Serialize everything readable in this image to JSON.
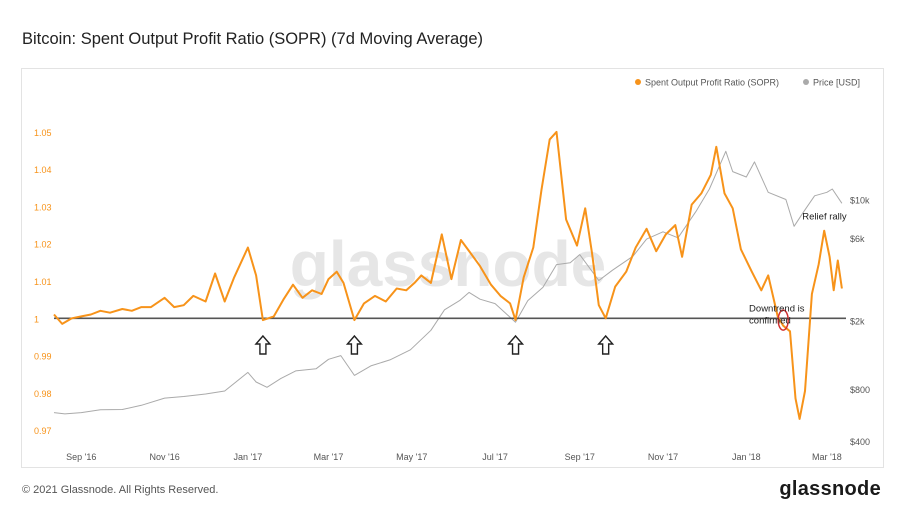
{
  "title": "Bitcoin: Spent Output Profit Ratio (SOPR) (7d Moving Average)",
  "footer": {
    "copyright": "© 2021 Glassnode. All Rights Reserved.",
    "logo": "glassnode"
  },
  "watermark": "glassnode",
  "colors": {
    "sopr": "#f7931a",
    "price": "#aaaaaa",
    "baseline": "#555555",
    "annotation": "#222222",
    "marker": "#d32f2f"
  },
  "chart_data": {
    "type": "line",
    "title": "Bitcoin: Spent Output Profit Ratio (SOPR) (7d Moving Average)",
    "legend_position": "top-right",
    "grid": false,
    "x_range": [
      "2016-08-12",
      "2018-03-15"
    ],
    "x_ticks": [
      {
        "date": "2016-09-01",
        "label": "Sep '16"
      },
      {
        "date": "2016-11-01",
        "label": "Nov '16"
      },
      {
        "date": "2017-01-01",
        "label": "Jan '17"
      },
      {
        "date": "2017-03-01",
        "label": "Mar '17"
      },
      {
        "date": "2017-05-01",
        "label": "May '17"
      },
      {
        "date": "2017-07-01",
        "label": "Jul '17"
      },
      {
        "date": "2017-09-01",
        "label": "Sep '17"
      },
      {
        "date": "2017-11-01",
        "label": "Nov '17"
      },
      {
        "date": "2018-01-01",
        "label": "Jan '18"
      },
      {
        "date": "2018-03-01",
        "label": "Mar '18"
      }
    ],
    "y_left": {
      "range": [
        0.966,
        1.054
      ],
      "ticks": [
        "0.97",
        "0.98",
        "0.99",
        "1",
        "1.01",
        "1.02",
        "1.03",
        "1.04",
        "1.05"
      ]
    },
    "y_right": {
      "scale": "log",
      "range": [
        380,
        30000
      ],
      "ticks": [
        {
          "value": 400,
          "label": "$400"
        },
        {
          "value": 800,
          "label": "$800"
        },
        {
          "value": 2000,
          "label": "$2k"
        },
        {
          "value": 6000,
          "label": "$6k"
        },
        {
          "value": 10000,
          "label": "$10k"
        }
      ]
    },
    "baseline": 1,
    "series": [
      {
        "name": "Spent Output Profit Ratio (SOPR)",
        "axis": "left",
        "points": [
          [
            "2016-08-12",
            1.001
          ],
          [
            "2016-08-18",
            0.9985
          ],
          [
            "2016-08-25",
            1.0
          ],
          [
            "2016-09-01",
            1.0005
          ],
          [
            "2016-09-08",
            1.001
          ],
          [
            "2016-09-15",
            1.002
          ],
          [
            "2016-09-22",
            1.0015
          ],
          [
            "2016-10-01",
            1.0025
          ],
          [
            "2016-10-08",
            1.002
          ],
          [
            "2016-10-15",
            1.003
          ],
          [
            "2016-10-22",
            1.003
          ],
          [
            "2016-11-01",
            1.0055
          ],
          [
            "2016-11-08",
            1.003
          ],
          [
            "2016-11-15",
            1.0035
          ],
          [
            "2016-11-22",
            1.006
          ],
          [
            "2016-12-01",
            1.0045
          ],
          [
            "2016-12-08",
            1.012
          ],
          [
            "2016-12-15",
            1.0045
          ],
          [
            "2016-12-22",
            1.011
          ],
          [
            "2017-01-01",
            1.019
          ],
          [
            "2017-01-07",
            1.0115
          ],
          [
            "2017-01-12",
            0.9995
          ],
          [
            "2017-01-20",
            1.0005
          ],
          [
            "2017-01-27",
            1.005
          ],
          [
            "2017-02-03",
            1.009
          ],
          [
            "2017-02-10",
            1.0055
          ],
          [
            "2017-02-17",
            1.0075
          ],
          [
            "2017-02-24",
            1.0065
          ],
          [
            "2017-03-01",
            1.0105
          ],
          [
            "2017-03-07",
            1.0125
          ],
          [
            "2017-03-12",
            1.0095
          ],
          [
            "2017-03-20",
            0.9995
          ],
          [
            "2017-03-27",
            1.004
          ],
          [
            "2017-04-04",
            1.006
          ],
          [
            "2017-04-12",
            1.0045
          ],
          [
            "2017-04-20",
            1.008
          ],
          [
            "2017-04-27",
            1.0075
          ],
          [
            "2017-05-03",
            1.0095
          ],
          [
            "2017-05-08",
            1.0115
          ],
          [
            "2017-05-15",
            1.0095
          ],
          [
            "2017-05-23",
            1.0225
          ],
          [
            "2017-05-30",
            1.0105
          ],
          [
            "2017-06-06",
            1.021
          ],
          [
            "2017-06-13",
            1.0175
          ],
          [
            "2017-06-20",
            1.014
          ],
          [
            "2017-06-28",
            1.009
          ],
          [
            "2017-07-05",
            1.006
          ],
          [
            "2017-07-12",
            1.004
          ],
          [
            "2017-07-16",
            0.9995
          ],
          [
            "2017-07-22",
            1.011
          ],
          [
            "2017-07-29",
            1.019
          ],
          [
            "2017-08-04",
            1.0345
          ],
          [
            "2017-08-10",
            1.048
          ],
          [
            "2017-08-15",
            1.05
          ],
          [
            "2017-08-22",
            1.0265
          ],
          [
            "2017-08-30",
            1.0195
          ],
          [
            "2017-09-05",
            1.0295
          ],
          [
            "2017-09-10",
            1.0175
          ],
          [
            "2017-09-15",
            1.0035
          ],
          [
            "2017-09-20",
            1.0
          ],
          [
            "2017-09-27",
            1.0085
          ],
          [
            "2017-10-05",
            1.0125
          ],
          [
            "2017-10-12",
            1.019
          ],
          [
            "2017-10-20",
            1.024
          ],
          [
            "2017-10-27",
            1.018
          ],
          [
            "2017-11-03",
            1.0225
          ],
          [
            "2017-11-10",
            1.025
          ],
          [
            "2017-11-15",
            1.0165
          ],
          [
            "2017-11-22",
            1.0305
          ],
          [
            "2017-11-29",
            1.0335
          ],
          [
            "2017-12-06",
            1.0385
          ],
          [
            "2017-12-10",
            1.046
          ],
          [
            "2017-12-16",
            1.0335
          ],
          [
            "2017-12-22",
            1.0295
          ],
          [
            "2017-12-28",
            1.0185
          ],
          [
            "2018-01-05",
            1.0125
          ],
          [
            "2018-01-12",
            1.0075
          ],
          [
            "2018-01-17",
            1.0115
          ],
          [
            "2018-01-24",
            1.0005
          ],
          [
            "2018-01-28",
            0.998
          ],
          [
            "2018-02-02",
            0.9965
          ],
          [
            "2018-02-06",
            0.9785
          ],
          [
            "2018-02-09",
            0.973
          ],
          [
            "2018-02-13",
            0.9805
          ],
          [
            "2018-02-18",
            1.0065
          ],
          [
            "2018-02-23",
            1.0145
          ],
          [
            "2018-02-27",
            1.0235
          ],
          [
            "2018-03-03",
            1.0165
          ],
          [
            "2018-03-06",
            1.0075
          ],
          [
            "2018-03-09",
            1.0155
          ],
          [
            "2018-03-12",
            1.008
          ]
        ]
      },
      {
        "name": "Price [USD]",
        "axis": "right",
        "points": [
          [
            "2016-08-12",
            585
          ],
          [
            "2016-08-20",
            575
          ],
          [
            "2016-09-01",
            585
          ],
          [
            "2016-09-15",
            608
          ],
          [
            "2016-10-01",
            610
          ],
          [
            "2016-10-15",
            645
          ],
          [
            "2016-11-01",
            710
          ],
          [
            "2016-11-15",
            725
          ],
          [
            "2016-12-01",
            750
          ],
          [
            "2016-12-15",
            780
          ],
          [
            "2017-01-01",
            1000
          ],
          [
            "2017-01-07",
            880
          ],
          [
            "2017-01-15",
            820
          ],
          [
            "2017-01-25",
            920
          ],
          [
            "2017-02-05",
            1020
          ],
          [
            "2017-02-20",
            1050
          ],
          [
            "2017-03-01",
            1190
          ],
          [
            "2017-03-10",
            1250
          ],
          [
            "2017-03-20",
            960
          ],
          [
            "2017-04-01",
            1090
          ],
          [
            "2017-04-15",
            1180
          ],
          [
            "2017-04-30",
            1350
          ],
          [
            "2017-05-15",
            1750
          ],
          [
            "2017-05-25",
            2300
          ],
          [
            "2017-06-05",
            2600
          ],
          [
            "2017-06-12",
            2900
          ],
          [
            "2017-06-20",
            2650
          ],
          [
            "2017-07-01",
            2500
          ],
          [
            "2017-07-16",
            1950
          ],
          [
            "2017-07-25",
            2600
          ],
          [
            "2017-08-05",
            3100
          ],
          [
            "2017-08-15",
            4200
          ],
          [
            "2017-08-25",
            4300
          ],
          [
            "2017-09-01",
            4800
          ],
          [
            "2017-09-15",
            3400
          ],
          [
            "2017-09-25",
            3900
          ],
          [
            "2017-10-10",
            4700
          ],
          [
            "2017-10-20",
            5900
          ],
          [
            "2017-11-01",
            6500
          ],
          [
            "2017-11-12",
            6000
          ],
          [
            "2017-11-25",
            8500
          ],
          [
            "2017-12-05",
            11500
          ],
          [
            "2017-12-17",
            19000
          ],
          [
            "2017-12-22",
            14500
          ],
          [
            "2018-01-01",
            13500
          ],
          [
            "2018-01-07",
            16500
          ],
          [
            "2018-01-17",
            11000
          ],
          [
            "2018-01-30",
            10000
          ],
          [
            "2018-02-05",
            7000
          ],
          [
            "2018-02-12",
            8500
          ],
          [
            "2018-02-20",
            10500
          ],
          [
            "2018-03-01",
            11000
          ],
          [
            "2018-03-05",
            11500
          ],
          [
            "2018-03-12",
            9500
          ]
        ]
      }
    ],
    "annotations": [
      {
        "type": "arrow-up",
        "date": "2017-01-12"
      },
      {
        "type": "arrow-up",
        "date": "2017-03-20"
      },
      {
        "type": "arrow-up",
        "date": "2017-07-16"
      },
      {
        "type": "arrow-up",
        "date": "2017-09-20"
      },
      {
        "type": "circle",
        "date": "2018-01-28",
        "value": 0.9995
      },
      {
        "type": "text",
        "text": "Downtrend is\nconfirmed",
        "date": "2018-01-03",
        "value": 1.0018
      },
      {
        "type": "text",
        "text": "Relief rally",
        "date": "2018-02-11",
        "value": 1.0265
      }
    ]
  }
}
